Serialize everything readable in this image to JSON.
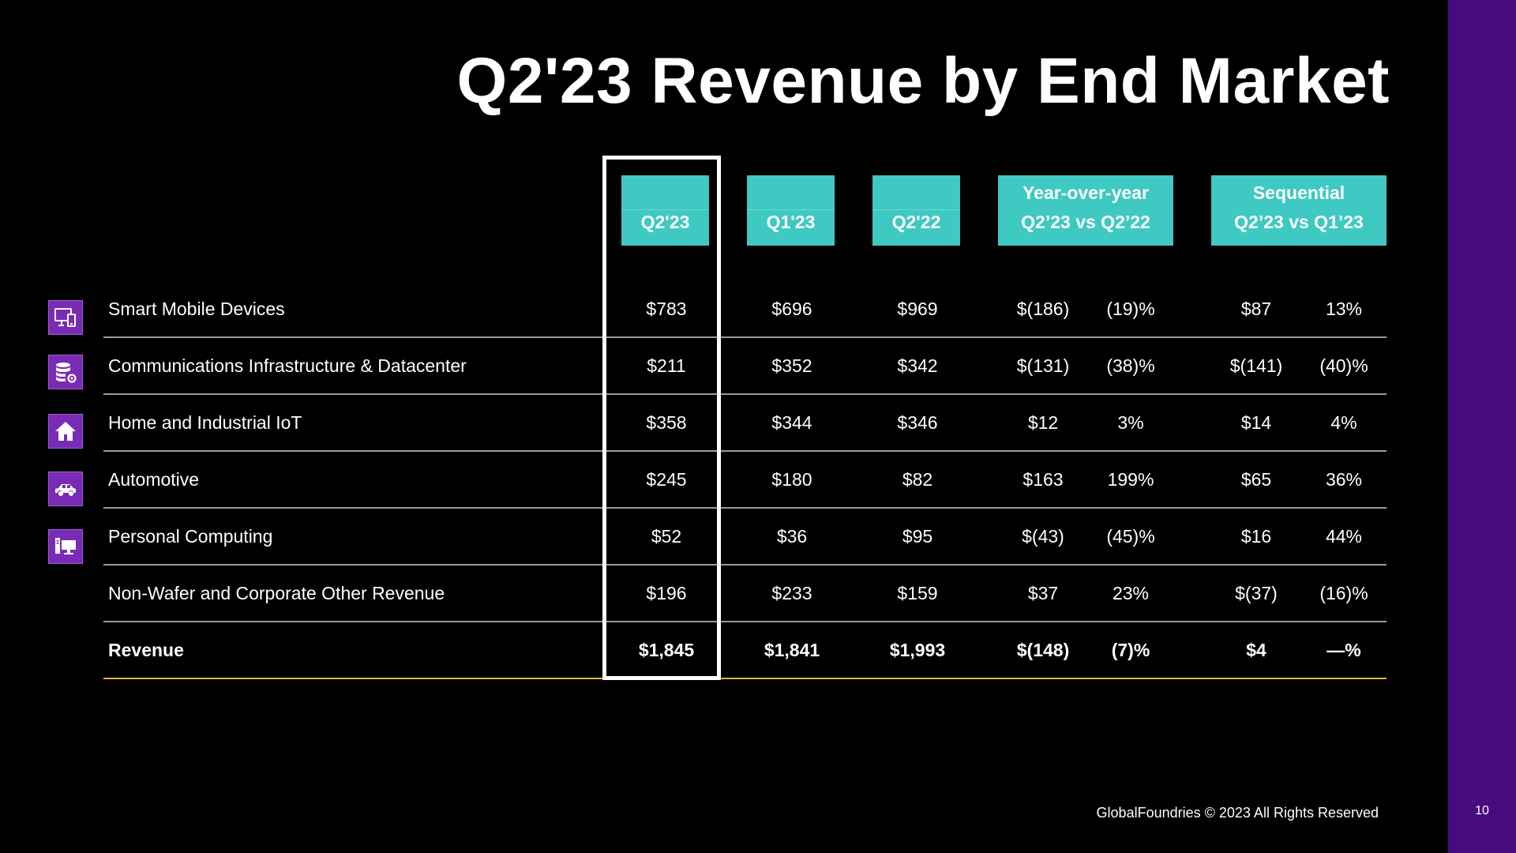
{
  "title": "Q2'23 Revenue by End Market",
  "columns": {
    "q2_23": "Q2'23",
    "q1_23": "Q1'23",
    "q2_22": "Q2'22",
    "yoy": {
      "line1": "Year-over-year",
      "line2": "Q2’23 vs Q2’22"
    },
    "seq": {
      "line1": "Sequential",
      "line2": "Q2’23 vs Q1’23"
    }
  },
  "rows": [
    {
      "icon": "mobile-devices-icon",
      "label": "Smart Mobile Devices",
      "q2_23": "$783",
      "q1_23": "$696",
      "q2_22": "$969",
      "yoy_amt": "$(186)",
      "yoy_pct": "(19)%",
      "seq_amt": "$87",
      "seq_pct": "13%"
    },
    {
      "icon": "datacenter-icon",
      "label": "Communications Infrastructure & Datacenter",
      "q2_23": "$211",
      "q1_23": "$352",
      "q2_22": "$342",
      "yoy_amt": "$(131)",
      "yoy_pct": "(38)%",
      "seq_amt": "$(141)",
      "seq_pct": "(40)%"
    },
    {
      "icon": "home-icon",
      "label": "Home and Industrial IoT",
      "q2_23": "$358",
      "q1_23": "$344",
      "q2_22": "$346",
      "yoy_amt": "$12",
      "yoy_pct": "3%",
      "seq_amt": "$14",
      "seq_pct": "4%"
    },
    {
      "icon": "car-icon",
      "label": "Automotive",
      "q2_23": "$245",
      "q1_23": "$180",
      "q2_22": "$82",
      "yoy_amt": "$163",
      "yoy_pct": "199%",
      "seq_amt": "$65",
      "seq_pct": "36%"
    },
    {
      "icon": "desktop-computer-icon",
      "label": "Personal Computing",
      "q2_23": "$52",
      "q1_23": "$36",
      "q2_22": "$95",
      "yoy_amt": "$(43)",
      "yoy_pct": "(45)%",
      "seq_amt": "$16",
      "seq_pct": "44%"
    },
    {
      "icon": "",
      "label": "Non-Wafer and Corporate Other Revenue",
      "q2_23": "$196",
      "q1_23": "$233",
      "q2_22": "$159",
      "yoy_amt": "$37",
      "yoy_pct": "23%",
      "seq_amt": "$(37)",
      "seq_pct": "(16)%"
    },
    {
      "icon": "",
      "label": "Revenue",
      "q2_23": "$1,845",
      "q1_23": "$1,841",
      "q2_22": "$1,993",
      "yoy_amt": "$(148)",
      "yoy_pct": "(7)%",
      "seq_amt": "$4",
      "seq_pct": "—%"
    }
  ],
  "footer": {
    "copyright": "GlobalFoundries © 2023 All Rights Reserved",
    "page_number": "10"
  },
  "colors": {
    "header": "#3ec9c2",
    "sidebar": "#4a0a7f",
    "icon": "#7a2bb5",
    "total_line": "#e3b43c"
  }
}
